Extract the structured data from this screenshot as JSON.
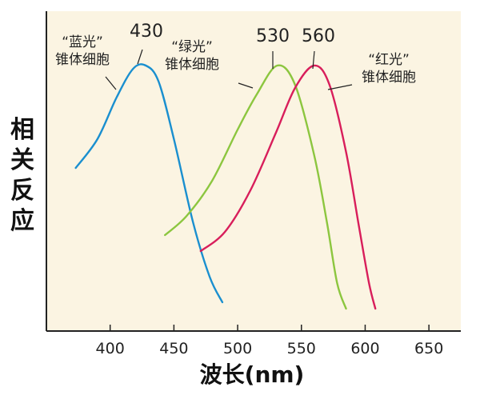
{
  "chart_data": {
    "type": "line",
    "xlabel": "波长(nm)",
    "ylabel": "相关反应",
    "xlim": [
      350,
      675
    ],
    "ylim": [
      0,
      1.0
    ],
    "xticks": [
      400,
      450,
      500,
      550,
      600,
      650
    ],
    "grid": false,
    "background": "#fbf4e2",
    "series": [
      {
        "name": "“蓝光”锥体细胞",
        "label_lines": [
          "“蓝光”",
          "锥体细胞"
        ],
        "peak_label": "430",
        "peak": 428,
        "color": "#1a8fcf",
        "x": [
          373,
          390,
          405,
          418,
          428,
          438,
          450,
          465,
          478,
          488
        ],
        "y": [
          0.51,
          0.6,
          0.73,
          0.82,
          0.83,
          0.78,
          0.6,
          0.34,
          0.17,
          0.09
        ]
      },
      {
        "name": "“绿光”锥体细胞",
        "label_lines": [
          "“绿光”",
          "锥体细胞"
        ],
        "peak_label": "530",
        "peak": 531,
        "color": "#8cc63f",
        "x": [
          443,
          460,
          480,
          500,
          515,
          531,
          545,
          560,
          570,
          578,
          585
        ],
        "y": [
          0.3,
          0.36,
          0.47,
          0.63,
          0.74,
          0.83,
          0.77,
          0.55,
          0.34,
          0.15,
          0.07
        ]
      },
      {
        "name": "“红光”锥体细胞",
        "label_lines": [
          "“红光”",
          "锥体细胞"
        ],
        "peak_label": "560",
        "peak": 560,
        "color": "#d81e5b",
        "x": [
          471,
          490,
          510,
          530,
          545,
          560,
          572,
          585,
          595,
          603,
          608
        ],
        "y": [
          0.25,
          0.31,
          0.44,
          0.62,
          0.76,
          0.83,
          0.77,
          0.56,
          0.33,
          0.15,
          0.07
        ]
      }
    ]
  }
}
